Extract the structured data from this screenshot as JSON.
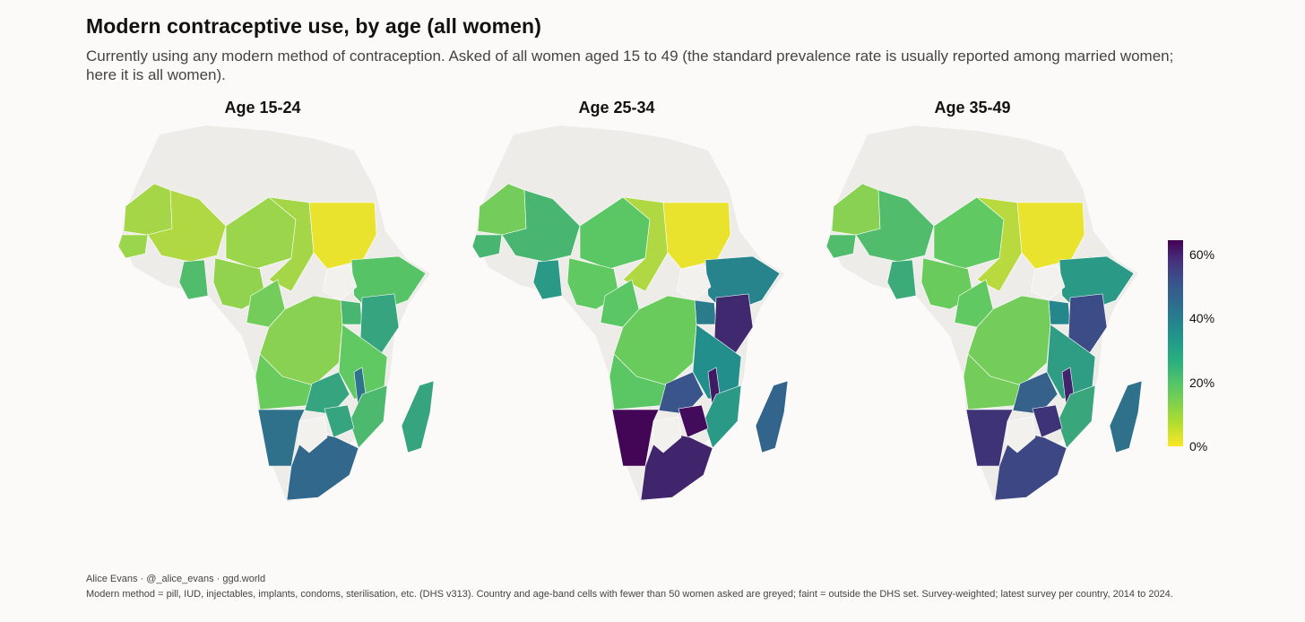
{
  "title": "Modern contraceptive use, by age (all women)",
  "subtitle": "Currently using any modern method of contraception. Asked of all women aged 15 to 49 (the standard prevalence rate is usually reported among married women; here it is all women).",
  "panels": [
    {
      "title": "Age 15-24",
      "values": {
        "senegal": 10,
        "mali": 8,
        "mauritania": 9,
        "niger": 10,
        "chad": 9,
        "sudan": 2,
        "nigeria": 11,
        "ghana": 20,
        "cameroon": 14,
        "drc": 12,
        "ethiopia": 18,
        "kenya": 27,
        "tanzania": 16,
        "angola": 15,
        "zambia": 27,
        "zimbabwe": 27,
        "malawi": 40,
        "mozambique": 21,
        "madagascar": 27,
        "namibia": 41,
        "south_africa": 43,
        "uganda": 22
      }
    },
    {
      "title": "Age 25-34",
      "values": {
        "senegal": 22,
        "mali": 22,
        "mauritania": 14,
        "niger": 17,
        "chad": 8,
        "sudan": 2,
        "nigeria": 16,
        "ghana": 30,
        "cameroon": 17,
        "drc": 15,
        "ethiopia": 36,
        "kenya": 57,
        "tanzania": 33,
        "angola": 17,
        "zambia": 48,
        "zimbabwe": 63,
        "malawi": 60,
        "mozambique": 30,
        "madagascar": 44,
        "namibia": 64,
        "south_africa": 58,
        "uganda": 38
      }
    },
    {
      "title": "Age 35-49",
      "values": {
        "senegal": 20,
        "mali": 20,
        "mauritania": 12,
        "niger": 16,
        "chad": 7,
        "sudan": 2,
        "nigeria": 15,
        "ghana": 25,
        "cameroon": 16,
        "drc": 14,
        "ethiopia": 30,
        "kenya": 50,
        "tanzania": 29,
        "angola": 14,
        "zambia": 45,
        "zimbabwe": 55,
        "malawi": 58,
        "mozambique": 26,
        "madagascar": 41,
        "namibia": 55,
        "south_africa": 51,
        "uganda": 35
      }
    }
  ],
  "legend": {
    "ticks": [
      "60%",
      "40%",
      "20%",
      "0%"
    ],
    "range": [
      0,
      65
    ],
    "palette": [
      "#fde725",
      "#5ec962",
      "#21918c",
      "#3b528b",
      "#440154"
    ],
    "missing_color": "#f2f1ee",
    "outside_color": "#eeece8"
  },
  "footer": {
    "credit": "Alice Evans · @_alice_evans · ggd.world",
    "note": "Modern method = pill, IUD, injectables, implants, condoms, sterilisation, etc. (DHS v313). Country and age-band cells with fewer than 50 women asked are greyed; faint = outside the DHS set. Survey-weighted; latest survey per country, 2014 to 2024."
  }
}
